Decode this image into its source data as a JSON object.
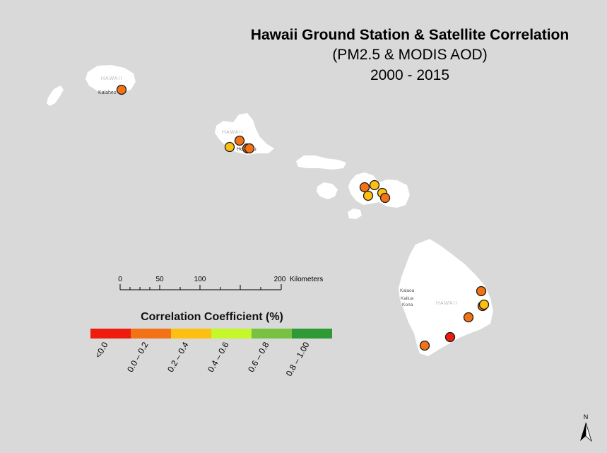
{
  "title": {
    "line1": "Hawaii Ground Station & Satellite Correlation",
    "line2": "(PM2.5 & MODIS AOD)",
    "line3": "2000 - 2015"
  },
  "islands": {
    "kauai_label": "HAWAII",
    "kauai_town": "Kalaheo",
    "oahu_label": "HAWAII",
    "oahu_town": "Honolulu",
    "big_island_label": "HAWAII",
    "kona_label_1": "Kalaoa",
    "kona_label_2": "Kailua",
    "kona_label_3": "Kona"
  },
  "scale_bar": {
    "ticks": [
      "0",
      "50",
      "100",
      "200"
    ],
    "unit": "Kilometers"
  },
  "legend": {
    "title": "Correlation Coefficient (%)",
    "classes": [
      {
        "label": "<0.0",
        "color": "#ee1c0e"
      },
      {
        "label": "0.0 – 0.2",
        "color": "#f47216"
      },
      {
        "label": "0.2 – 0.4",
        "color": "#fdbf10"
      },
      {
        "label": "0.4 – 0.6",
        "color": "#c5f72a"
      },
      {
        "label": "0.6 – 0.8",
        "color": "#78c142"
      },
      {
        "label": "0.8 – 1.00",
        "color": "#2f9a35"
      }
    ]
  },
  "north_arrow": {
    "label": "N"
  },
  "colors": {
    "background": "#d9d9da",
    "land": "#ffffff",
    "station_outline": "#1a1a1a"
  },
  "stations": [
    {
      "island": "Kauai",
      "class": 1
    },
    {
      "island": "Oahu",
      "class": 2
    },
    {
      "island": "Oahu",
      "class": 1
    },
    {
      "island": "Oahu",
      "class": 1
    },
    {
      "island": "Oahu",
      "class": 1
    },
    {
      "island": "Maui",
      "class": 1
    },
    {
      "island": "Maui",
      "class": 2
    },
    {
      "island": "Maui",
      "class": 2
    },
    {
      "island": "Maui",
      "class": 2
    },
    {
      "island": "Maui",
      "class": 1
    },
    {
      "island": "Hawaii",
      "class": 1
    },
    {
      "island": "Hawaii",
      "class": 1
    },
    {
      "island": "Hawaii",
      "class": 2
    },
    {
      "island": "Hawaii",
      "class": 1
    },
    {
      "island": "Hawaii",
      "class": 0
    },
    {
      "island": "Hawaii",
      "class": 1
    }
  ]
}
